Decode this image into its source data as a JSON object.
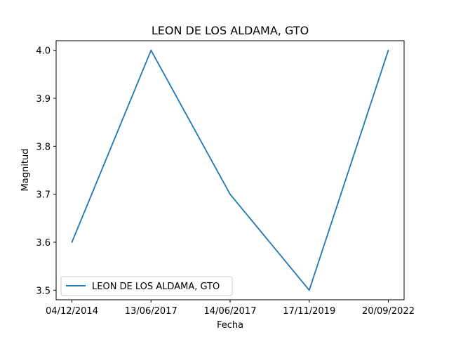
{
  "chart_data": {
    "type": "line",
    "title": "LEON DE LOS ALDAMA, GTO",
    "xlabel": "Fecha",
    "ylabel": "Magnitud",
    "categories": [
      "04/12/2014",
      "13/06/2017",
      "14/06/2017",
      "17/11/2019",
      "20/09/2022"
    ],
    "series": [
      {
        "name": "LEON DE LOS ALDAMA, GTO",
        "values": [
          3.6,
          4.0,
          3.7,
          3.5,
          4.0
        ],
        "color": "#1f77b4"
      }
    ],
    "ylim": [
      3.48,
      4.02
    ],
    "yticks": [
      "3.5",
      "3.6",
      "3.7",
      "3.8",
      "3.9",
      "4.0"
    ],
    "grid": false,
    "legend_position": "lower-left"
  }
}
